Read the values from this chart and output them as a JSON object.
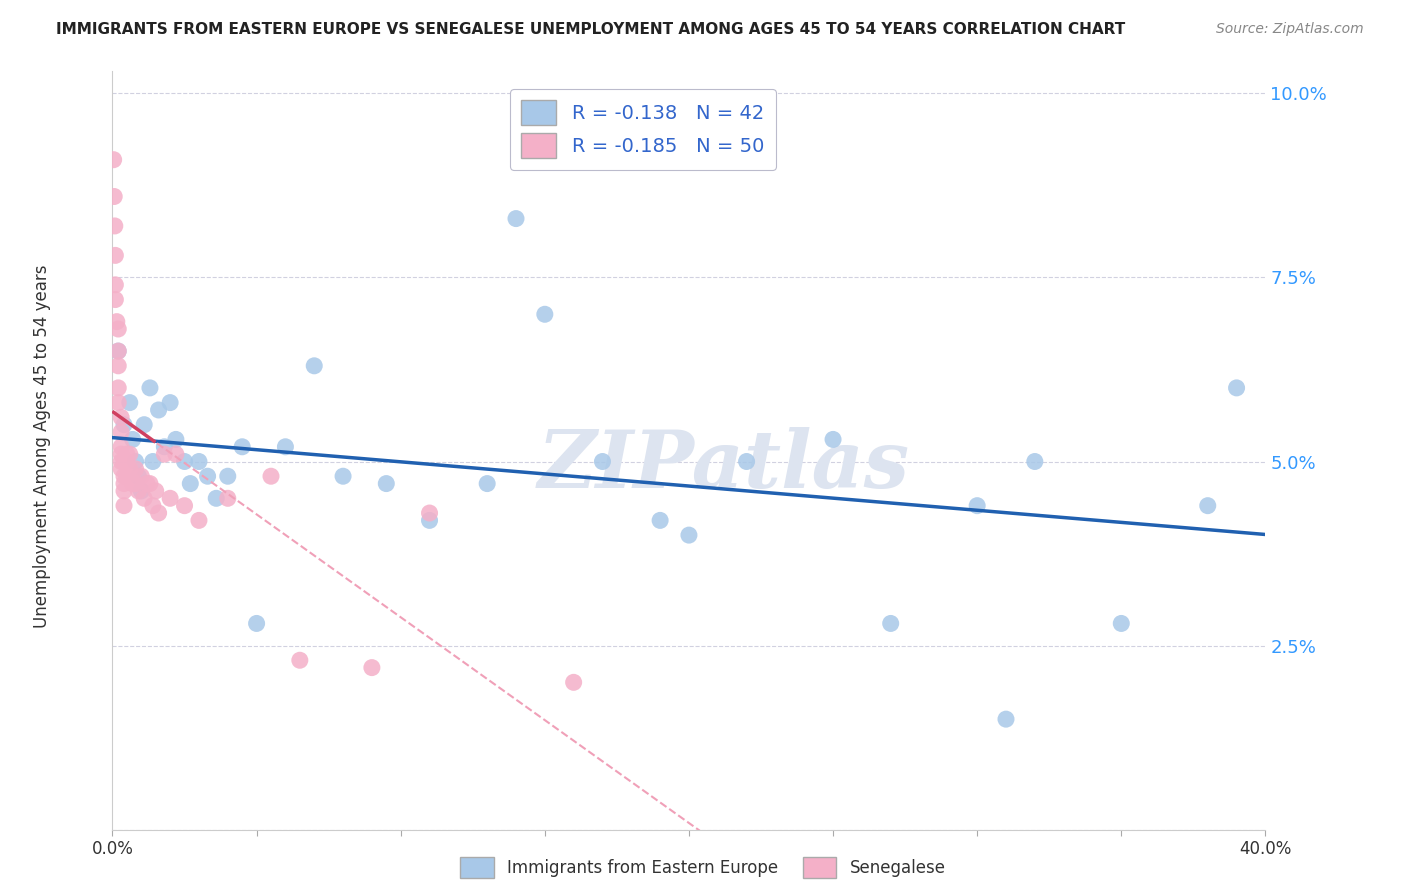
{
  "title": "IMMIGRANTS FROM EASTERN EUROPE VS SENEGALESE UNEMPLOYMENT AMONG AGES 45 TO 54 YEARS CORRELATION CHART",
  "source": "Source: ZipAtlas.com",
  "ylabel": "Unemployment Among Ages 45 to 54 years",
  "xlim": [
    0.0,
    0.4
  ],
  "ylim": [
    0.0,
    0.103
  ],
  "yticks": [
    0.0,
    0.025,
    0.05,
    0.075,
    0.1
  ],
  "ytick_labels": [
    "",
    "2.5%",
    "5.0%",
    "7.5%",
    "10.0%"
  ],
  "xticks": [
    0.0,
    0.05,
    0.1,
    0.15,
    0.2,
    0.25,
    0.3,
    0.35,
    0.4
  ],
  "xtick_labels": [
    "0.0%",
    "",
    "",
    "",
    "",
    "",
    "",
    "",
    "40.0%"
  ],
  "blue_scatter_x": [
    0.002,
    0.004,
    0.006,
    0.007,
    0.008,
    0.009,
    0.01,
    0.011,
    0.013,
    0.014,
    0.016,
    0.018,
    0.02,
    0.022,
    0.025,
    0.027,
    0.03,
    0.033,
    0.036,
    0.04,
    0.045,
    0.05,
    0.06,
    0.07,
    0.08,
    0.095,
    0.11,
    0.13,
    0.15,
    0.17,
    0.19,
    0.22,
    0.25,
    0.27,
    0.3,
    0.32,
    0.35,
    0.38,
    0.14,
    0.2,
    0.31,
    0.39
  ],
  "blue_scatter_y": [
    0.065,
    0.055,
    0.058,
    0.053,
    0.05,
    0.048,
    0.046,
    0.055,
    0.06,
    0.05,
    0.057,
    0.052,
    0.058,
    0.053,
    0.05,
    0.047,
    0.05,
    0.048,
    0.045,
    0.048,
    0.052,
    0.028,
    0.052,
    0.063,
    0.048,
    0.047,
    0.042,
    0.047,
    0.07,
    0.05,
    0.042,
    0.05,
    0.053,
    0.028,
    0.044,
    0.05,
    0.028,
    0.044,
    0.083,
    0.04,
    0.015,
    0.06
  ],
  "pink_scatter_x": [
    0.0004,
    0.0006,
    0.0008,
    0.001,
    0.001,
    0.001,
    0.0015,
    0.002,
    0.002,
    0.002,
    0.002,
    0.002,
    0.003,
    0.003,
    0.003,
    0.003,
    0.003,
    0.003,
    0.004,
    0.004,
    0.004,
    0.004,
    0.004,
    0.005,
    0.005,
    0.005,
    0.006,
    0.006,
    0.007,
    0.008,
    0.008,
    0.009,
    0.01,
    0.011,
    0.012,
    0.013,
    0.014,
    0.015,
    0.016,
    0.018,
    0.02,
    0.022,
    0.025,
    0.03,
    0.04,
    0.055,
    0.065,
    0.09,
    0.11,
    0.16
  ],
  "pink_scatter_y": [
    0.091,
    0.086,
    0.082,
    0.078,
    0.074,
    0.072,
    0.069,
    0.068,
    0.065,
    0.063,
    0.06,
    0.058,
    0.056,
    0.054,
    0.052,
    0.051,
    0.05,
    0.049,
    0.05,
    0.048,
    0.047,
    0.046,
    0.044,
    0.051,
    0.05,
    0.048,
    0.051,
    0.049,
    0.047,
    0.049,
    0.047,
    0.046,
    0.048,
    0.045,
    0.047,
    0.047,
    0.044,
    0.046,
    0.043,
    0.051,
    0.045,
    0.051,
    0.044,
    0.042,
    0.045,
    0.048,
    0.023,
    0.022,
    0.043,
    0.02
  ],
  "blue_color": "#a8c8e8",
  "pink_color": "#f4b0c8",
  "blue_line_color": "#2060b0",
  "pink_line_solid_color": "#d04060",
  "pink_line_dashed_color": "#f0a0b8",
  "legend_label_color": "#3366cc",
  "watermark": "ZIPatlas",
  "watermark_color": "#dde4f0",
  "grid_color": "#ccccdd",
  "background_color": "#ffffff",
  "title_color": "#222222",
  "source_color": "#888888",
  "ylabel_color": "#333333",
  "tick_label_color_y": "#3399ff",
  "tick_label_color_x": "#333333",
  "bottom_legend_blue": "Immigrants from Eastern Europe",
  "bottom_legend_pink": "Senegalese"
}
